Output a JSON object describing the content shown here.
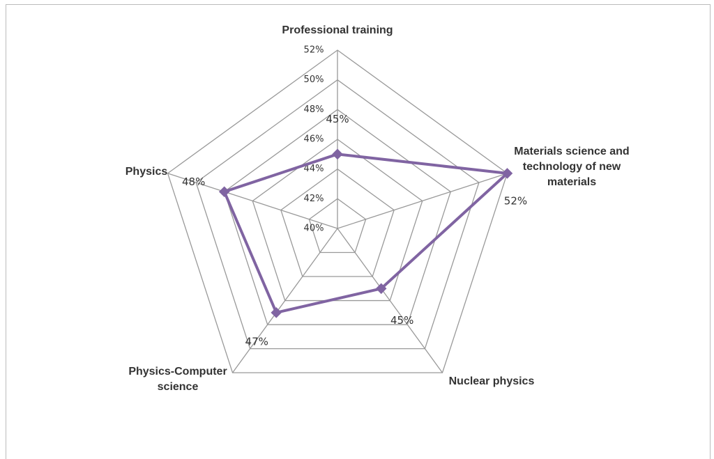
{
  "chart_data": {
    "type": "radar",
    "categories": [
      "Professional training",
      "Materials science and technology of new materials",
      "Nuclear physics",
      "Physics-Computer science",
      "Physics"
    ],
    "values": [
      45,
      52,
      45,
      47,
      48
    ],
    "value_labels": [
      "45%",
      "52%",
      "45%",
      "47%",
      "48%"
    ],
    "color": "#8064a2",
    "rlim": [
      40,
      52
    ],
    "rticks": [
      {
        "value": 40,
        "label": "40%"
      },
      {
        "value": 42,
        "label": "42%"
      },
      {
        "value": 44,
        "label": "44%"
      },
      {
        "value": 46,
        "label": "46%"
      },
      {
        "value": 48,
        "label": "48%"
      },
      {
        "value": 50,
        "label": "50%"
      },
      {
        "value": 52,
        "label": "52%"
      }
    ],
    "grid": true
  }
}
